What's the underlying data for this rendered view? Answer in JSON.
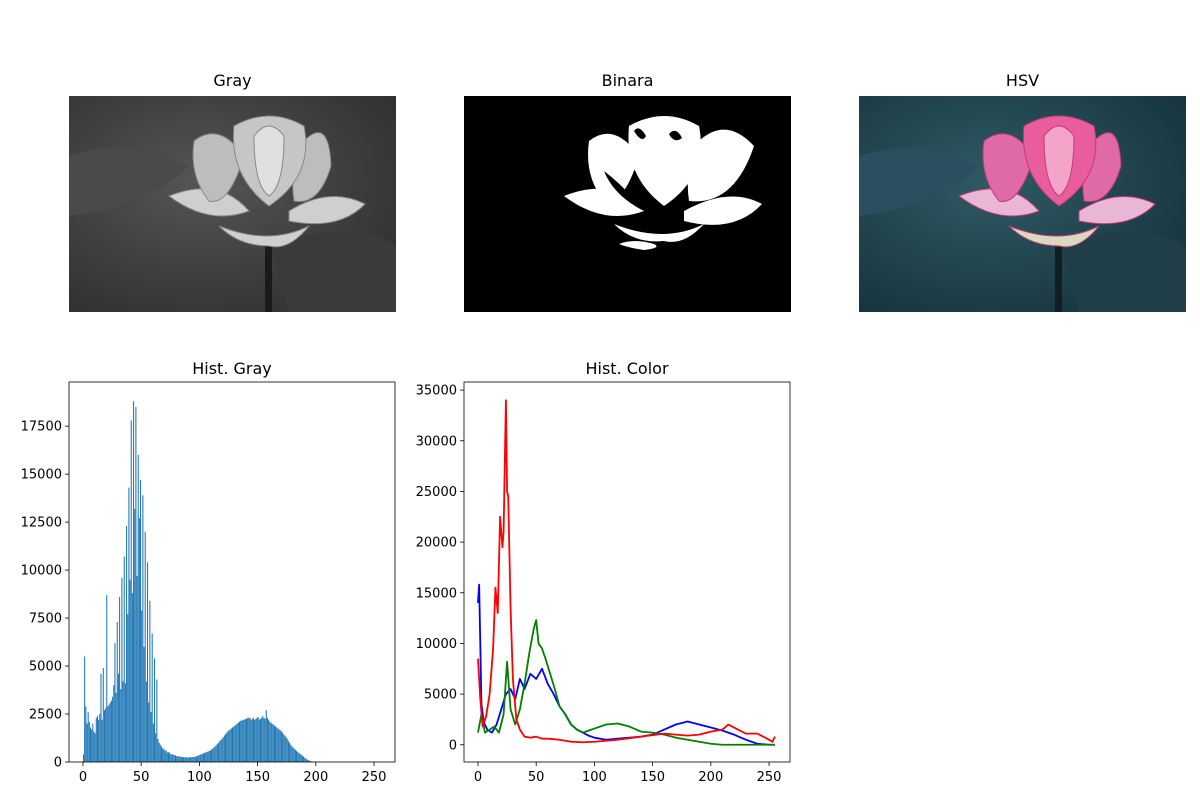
{
  "panels": {
    "gray": {
      "title": "Gray"
    },
    "binara": {
      "title": "Binara"
    },
    "hsv": {
      "title": "HSV"
    }
  },
  "chart_data": [
    {
      "type": "bar",
      "title": "Hist. Gray",
      "xlim": [
        -12,
        268
      ],
      "ylim": [
        0,
        19800
      ],
      "xticks": [
        0,
        50,
        100,
        150,
        200,
        250
      ],
      "yticks": [
        0,
        2500,
        5000,
        7500,
        10000,
        12500,
        15000,
        17500
      ],
      "color": "#1f77b4",
      "bin_values": [
        400,
        5500,
        2900,
        2000,
        2600,
        2100,
        1800,
        1700,
        2000,
        1600,
        1500,
        2300,
        2400,
        2200,
        2500,
        4600,
        2200,
        4900,
        2700,
        2800,
        8700,
        2900,
        3000,
        3100,
        3200,
        3400,
        4000,
        6200,
        3600,
        7300,
        4600,
        8600,
        3800,
        9600,
        4200,
        10700,
        4100,
        12300,
        7700,
        14300,
        9500,
        17800,
        8800,
        18800,
        13200,
        18500,
        9700,
        16000,
        12700,
        14700,
        7900,
        13900,
        6000,
        12000,
        4200,
        10400,
        3100,
        8400,
        2600,
        6700,
        2000,
        5400,
        1500,
        4300,
        1200,
        1000,
        900,
        800,
        700,
        700,
        600,
        600,
        500,
        500,
        500,
        400,
        400,
        400,
        350,
        350,
        300,
        300,
        300,
        280,
        260,
        260,
        250,
        250,
        240,
        240,
        240,
        240,
        250,
        250,
        260,
        270,
        280,
        300,
        320,
        350,
        380,
        400,
        420,
        450,
        480,
        500,
        520,
        550,
        580,
        600,
        650,
        700,
        760,
        820,
        880,
        940,
        1000,
        1080,
        1150,
        1220,
        1300,
        1380,
        1450,
        1520,
        1600,
        1650,
        1700,
        1750,
        1800,
        1850,
        1900,
        1950,
        2000,
        2050,
        2100,
        2150,
        2150,
        2200,
        2200,
        2250,
        2250,
        2300,
        2300,
        2300,
        2200,
        2250,
        2300,
        2200,
        2250,
        2300,
        2350,
        2200,
        2250,
        2300,
        2400,
        2300,
        2250,
        2700,
        2300,
        2200,
        2100,
        2050,
        2000,
        1950,
        1900,
        1850,
        1800,
        1750,
        1700,
        1650,
        1600,
        1520,
        1450,
        1380,
        1300,
        1200,
        1100,
        1000,
        900,
        820,
        760,
        700,
        640,
        580,
        520,
        470,
        420,
        380,
        330,
        280,
        230,
        180,
        140,
        100,
        70,
        50,
        30,
        20,
        15,
        10,
        5,
        3,
        2,
        1,
        0,
        0,
        0,
        0,
        0,
        0,
        0,
        0,
        0,
        0,
        0,
        0,
        0,
        0,
        0,
        0,
        0,
        0,
        0,
        0,
        0,
        0,
        0,
        0,
        0,
        0,
        0,
        0,
        0,
        0,
        0,
        0,
        0,
        0,
        0,
        0,
        0,
        0,
        0,
        0,
        0,
        0,
        0,
        0,
        0,
        0,
        0,
        0,
        0,
        0,
        0,
        0
      ]
    },
    {
      "type": "line",
      "title": "Hist. Color",
      "xlim": [
        -12,
        268
      ],
      "ylim": [
        -1700,
        35800
      ],
      "xticks": [
        0,
        50,
        100,
        150,
        200,
        250
      ],
      "yticks": [
        0,
        5000,
        10000,
        15000,
        20000,
        25000,
        30000,
        35000
      ],
      "series": [
        {
          "color": "#0000ff",
          "points": [
            [
              0,
              14000
            ],
            [
              1,
              15800
            ],
            [
              3,
              4000
            ],
            [
              5,
              2200
            ],
            [
              8,
              1500
            ],
            [
              12,
              1200
            ],
            [
              16,
              2000
            ],
            [
              20,
              3500
            ],
            [
              24,
              5000
            ],
            [
              28,
              5500
            ],
            [
              32,
              4500
            ],
            [
              36,
              6500
            ],
            [
              40,
              5500
            ],
            [
              45,
              7000
            ],
            [
              50,
              6500
            ],
            [
              55,
              7500
            ],
            [
              60,
              6000
            ],
            [
              65,
              5000
            ],
            [
              70,
              3800
            ],
            [
              75,
              3000
            ],
            [
              80,
              2000
            ],
            [
              85,
              1500
            ],
            [
              90,
              1200
            ],
            [
              95,
              900
            ],
            [
              100,
              700
            ],
            [
              110,
              500
            ],
            [
              120,
              600
            ],
            [
              130,
              700
            ],
            [
              140,
              800
            ],
            [
              150,
              1000
            ],
            [
              160,
              1500
            ],
            [
              170,
              2000
            ],
            [
              180,
              2300
            ],
            [
              190,
              2000
            ],
            [
              200,
              1700
            ],
            [
              210,
              1400
            ],
            [
              220,
              1000
            ],
            [
              230,
              500
            ],
            [
              240,
              100
            ],
            [
              250,
              0
            ],
            [
              255,
              0
            ]
          ]
        },
        {
          "color": "#008000",
          "points": [
            [
              0,
              1200
            ],
            [
              3,
              3000
            ],
            [
              6,
              1200
            ],
            [
              10,
              1500
            ],
            [
              14,
              1800
            ],
            [
              18,
              1200
            ],
            [
              22,
              3000
            ],
            [
              25,
              8200
            ],
            [
              28,
              3500
            ],
            [
              32,
              2000
            ],
            [
              36,
              3500
            ],
            [
              40,
              6000
            ],
            [
              44,
              9000
            ],
            [
              48,
              11500
            ],
            [
              50,
              12300
            ],
            [
              52,
              10000
            ],
            [
              55,
              9500
            ],
            [
              58,
              8500
            ],
            [
              62,
              7000
            ],
            [
              66,
              5500
            ],
            [
              70,
              3800
            ],
            [
              75,
              3000
            ],
            [
              80,
              2000
            ],
            [
              85,
              1500
            ],
            [
              90,
              1200
            ],
            [
              95,
              1400
            ],
            [
              100,
              1600
            ],
            [
              110,
              2000
            ],
            [
              120,
              2100
            ],
            [
              130,
              1800
            ],
            [
              140,
              1300
            ],
            [
              150,
              1200
            ],
            [
              160,
              1000
            ],
            [
              170,
              700
            ],
            [
              180,
              500
            ],
            [
              190,
              300
            ],
            [
              200,
              100
            ],
            [
              210,
              0
            ],
            [
              255,
              0
            ]
          ]
        },
        {
          "color": "#ff0000",
          "points": [
            [
              0,
              8500
            ],
            [
              2,
              4500
            ],
            [
              4,
              1800
            ],
            [
              7,
              2800
            ],
            [
              10,
              5000
            ],
            [
              13,
              9500
            ],
            [
              15,
              15500
            ],
            [
              17,
              13000
            ],
            [
              19,
              22500
            ],
            [
              21,
              19500
            ],
            [
              22,
              21000
            ],
            [
              24,
              34000
            ],
            [
              25,
              25000
            ],
            [
              26,
              24500
            ],
            [
              28,
              13500
            ],
            [
              30,
              6500
            ],
            [
              33,
              2500
            ],
            [
              36,
              1500
            ],
            [
              40,
              800
            ],
            [
              45,
              700
            ],
            [
              50,
              800
            ],
            [
              55,
              600
            ],
            [
              60,
              600
            ],
            [
              70,
              500
            ],
            [
              80,
              300
            ],
            [
              90,
              250
            ],
            [
              100,
              300
            ],
            [
              120,
              500
            ],
            [
              140,
              800
            ],
            [
              160,
              1100
            ],
            [
              170,
              1000
            ],
            [
              180,
              900
            ],
            [
              190,
              1000
            ],
            [
              200,
              1300
            ],
            [
              210,
              1500
            ],
            [
              215,
              2000
            ],
            [
              220,
              1700
            ],
            [
              230,
              1100
            ],
            [
              240,
              1100
            ],
            [
              250,
              500
            ],
            [
              253,
              300
            ],
            [
              255,
              800
            ]
          ]
        }
      ]
    }
  ]
}
